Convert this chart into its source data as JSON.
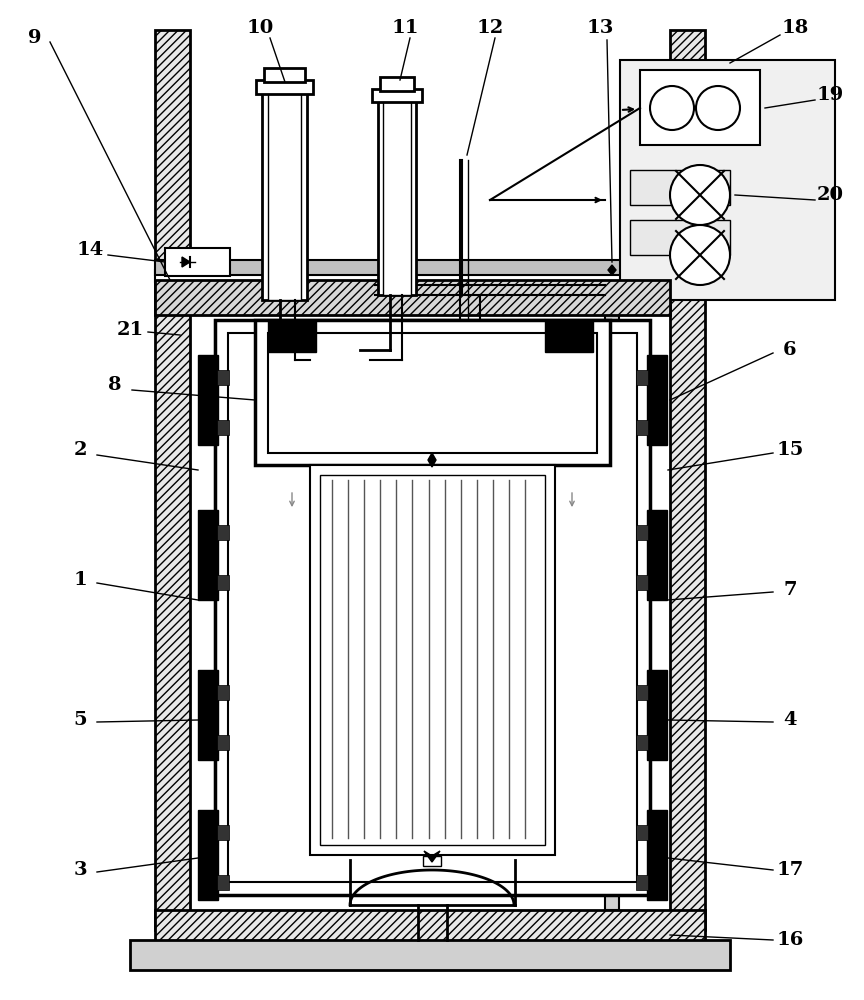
{
  "bg_color": "#ffffff",
  "lc": "#000000",
  "gray": "#888888",
  "lgray": "#cccccc",
  "figsize": [
    8.64,
    10.0
  ],
  "dpi": 100
}
